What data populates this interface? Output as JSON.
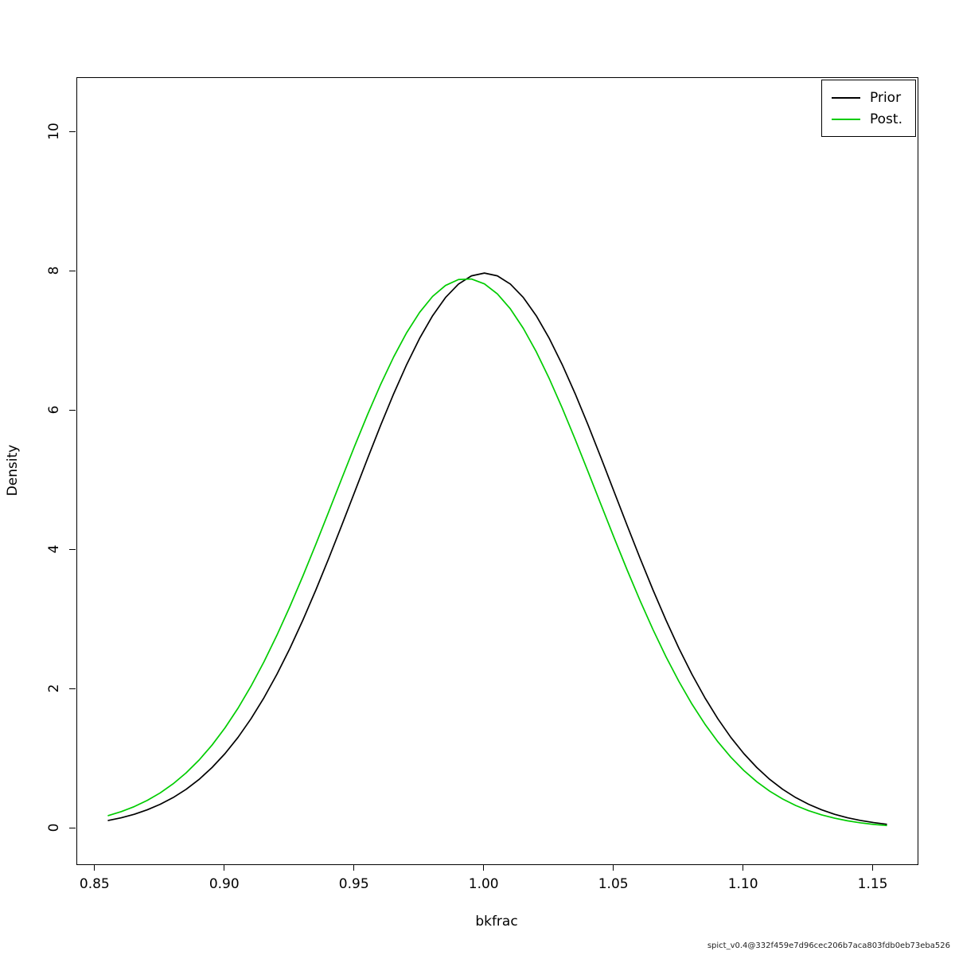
{
  "footer": "spict_v0.4@332f459e7d96cec206b7aca803fdb0eb73eba526",
  "chart_data": {
    "type": "line",
    "title": "",
    "xlabel": "bkfrac",
    "ylabel": "Density",
    "grid": false,
    "xlim": [
      0.843,
      1.167
    ],
    "ylim": [
      -0.51,
      10.78
    ],
    "x_ticks": [
      {
        "v": 0.85,
        "label": "0.85"
      },
      {
        "v": 0.9,
        "label": "0.90"
      },
      {
        "v": 0.95,
        "label": "0.95"
      },
      {
        "v": 1.0,
        "label": "1.00"
      },
      {
        "v": 1.05,
        "label": "1.05"
      },
      {
        "v": 1.1,
        "label": "1.10"
      },
      {
        "v": 1.15,
        "label": "1.15"
      }
    ],
    "y_ticks": [
      {
        "v": 0,
        "label": "0"
      },
      {
        "v": 2,
        "label": "2"
      },
      {
        "v": 4,
        "label": "4"
      },
      {
        "v": 6,
        "label": "6"
      },
      {
        "v": 8,
        "label": "8"
      },
      {
        "v": 10,
        "label": "10"
      }
    ],
    "legend": {
      "position": "topright",
      "entries": [
        {
          "label": "Prior",
          "color": "#000000"
        },
        {
          "label": "Post.",
          "color": "#00CC00"
        }
      ]
    },
    "x": [
      0.855,
      0.86,
      0.865,
      0.87,
      0.875,
      0.88,
      0.885,
      0.89,
      0.895,
      0.9,
      0.905,
      0.91,
      0.915,
      0.92,
      0.925,
      0.93,
      0.935,
      0.94,
      0.945,
      0.95,
      0.955,
      0.96,
      0.965,
      0.97,
      0.975,
      0.98,
      0.985,
      0.99,
      0.995,
      1.0,
      1.005,
      1.01,
      1.015,
      1.02,
      1.025,
      1.03,
      1.035,
      1.04,
      1.045,
      1.05,
      1.055,
      1.06,
      1.065,
      1.07,
      1.075,
      1.08,
      1.085,
      1.09,
      1.095,
      1.1,
      1.105,
      1.11,
      1.115,
      1.12,
      1.125,
      1.13,
      1.135,
      1.14,
      1.145,
      1.15,
      1.155
    ],
    "series": [
      {
        "name": "Prior",
        "color": "#000000",
        "values": [
          0.119,
          0.158,
          0.208,
          0.272,
          0.351,
          0.448,
          0.566,
          0.709,
          0.88,
          1.08,
          1.312,
          1.579,
          1.881,
          2.218,
          2.59,
          2.995,
          3.428,
          3.884,
          4.357,
          4.839,
          5.322,
          5.794,
          6.245,
          6.664,
          7.041,
          7.365,
          7.628,
          7.821,
          7.939,
          7.979,
          7.939,
          7.821,
          7.628,
          7.365,
          7.041,
          6.664,
          6.245,
          5.794,
          5.322,
          4.839,
          4.357,
          3.884,
          3.428,
          2.995,
          2.59,
          2.218,
          1.881,
          1.579,
          1.312,
          1.08,
          0.88,
          0.709,
          0.566,
          0.448,
          0.351,
          0.272,
          0.208,
          0.158,
          0.119,
          0.089,
          0.065
        ]
      },
      {
        "name": "Post.",
        "color": "#00CC00",
        "values": [
          0.189,
          0.246,
          0.318,
          0.407,
          0.515,
          0.646,
          0.803,
          0.987,
          1.202,
          1.45,
          1.731,
          2.047,
          2.397,
          2.779,
          3.191,
          3.628,
          4.085,
          4.555,
          5.029,
          5.498,
          5.952,
          6.381,
          6.774,
          7.122,
          7.414,
          7.643,
          7.801,
          7.886,
          7.894,
          7.824,
          7.68,
          7.465,
          7.185,
          6.848,
          6.463,
          6.04,
          5.59,
          5.123,
          4.649,
          4.178,
          3.718,
          3.276,
          2.859,
          2.47,
          2.114,
          1.791,
          1.503,
          1.249,
          1.028,
          0.837,
          0.675,
          0.539,
          0.427,
          0.334,
          0.259,
          0.199,
          0.152,
          0.114,
          0.085,
          0.063,
          0.046
        ]
      }
    ]
  }
}
